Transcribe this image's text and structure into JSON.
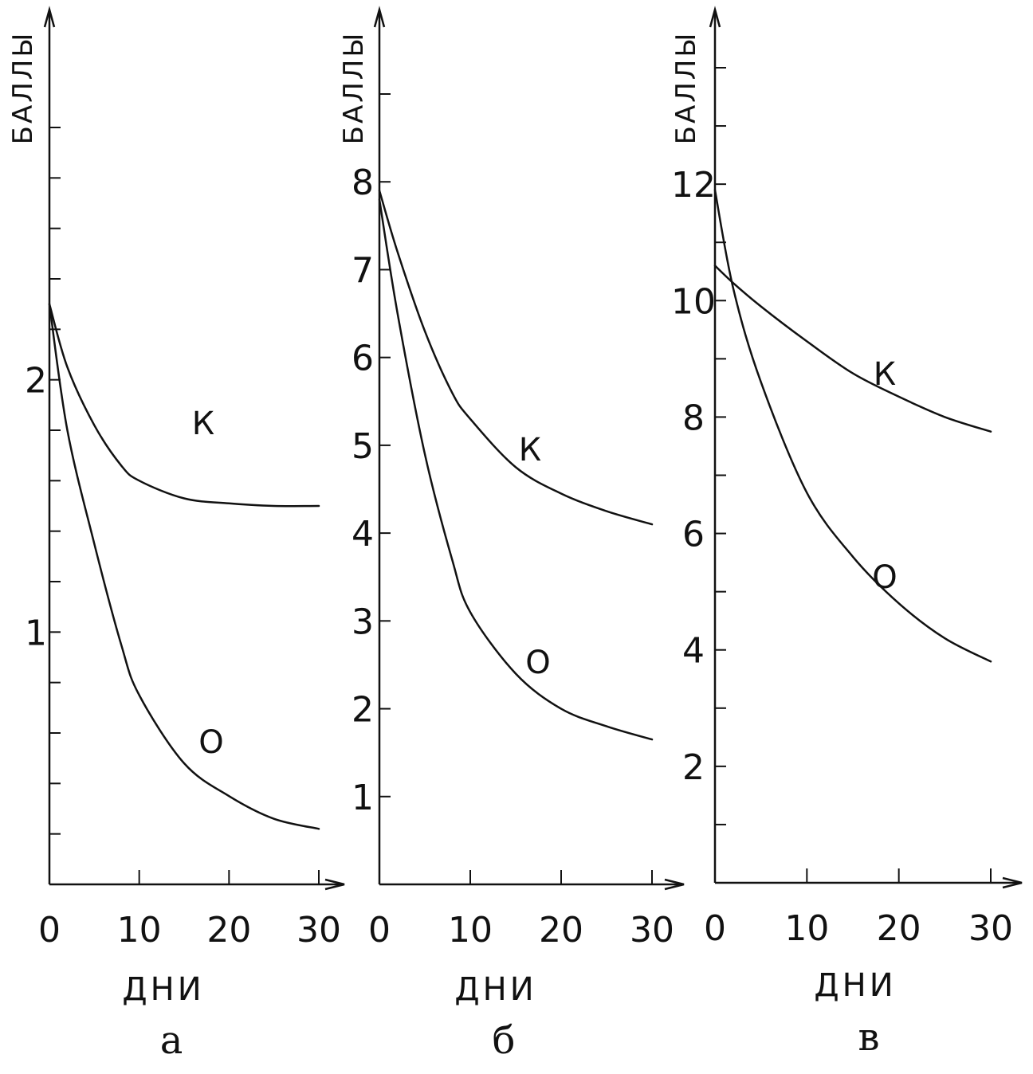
{
  "chart_data": [
    {
      "type": "line",
      "panel_label": "а",
      "xlabel": "ДНИ",
      "ylabel": "БАЛЛЫ",
      "xlim": [
        0,
        30
      ],
      "ylim": [
        0,
        3
      ],
      "x_ticks": [
        0,
        10,
        20,
        30
      ],
      "y_minor_step": 0.2,
      "y_tick_labels": [
        {
          "value": 1,
          "label": "1"
        },
        {
          "value": 2,
          "label": "2"
        }
      ],
      "series": [
        {
          "name": "К",
          "x": [
            0,
            2,
            5,
            8,
            10,
            15,
            20,
            25,
            30
          ],
          "y": [
            2.3,
            2.05,
            1.82,
            1.66,
            1.6,
            1.53,
            1.51,
            1.5,
            1.5
          ]
        },
        {
          "name": "О",
          "x": [
            0,
            2,
            5,
            8,
            10,
            15,
            20,
            25,
            30
          ],
          "y": [
            2.3,
            1.8,
            1.35,
            0.95,
            0.75,
            0.48,
            0.35,
            0.26,
            0.22
          ]
        }
      ]
    },
    {
      "type": "line",
      "panel_label": "б",
      "xlabel": "ДНИ",
      "ylabel": "БАЛЛЫ",
      "xlim": [
        0,
        30
      ],
      "ylim": [
        0,
        9
      ],
      "x_ticks": [
        0,
        10,
        20,
        30
      ],
      "y_minor_step": 1,
      "y_tick_labels": [
        {
          "value": 1,
          "label": "1"
        },
        {
          "value": 2,
          "label": "2"
        },
        {
          "value": 3,
          "label": "3"
        },
        {
          "value": 4,
          "label": "4"
        },
        {
          "value": 5,
          "label": "5"
        },
        {
          "value": 6,
          "label": "6"
        },
        {
          "value": 7,
          "label": "7"
        },
        {
          "value": 8,
          "label": "8"
        }
      ],
      "series": [
        {
          "name": "К",
          "x": [
            0,
            2,
            5,
            8,
            10,
            15,
            20,
            25,
            30
          ],
          "y": [
            7.9,
            7.2,
            6.3,
            5.6,
            5.3,
            4.75,
            4.45,
            4.25,
            4.1
          ]
        },
        {
          "name": "О",
          "x": [
            0,
            2,
            5,
            8,
            10,
            15,
            20,
            25,
            30
          ],
          "y": [
            7.8,
            6.5,
            4.9,
            3.7,
            3.1,
            2.4,
            2.0,
            1.8,
            1.65
          ]
        }
      ]
    },
    {
      "type": "line",
      "panel_label": "в",
      "xlabel": "ДНИ",
      "ylabel": "БАЛЛЫ",
      "xlim": [
        0,
        30
      ],
      "ylim": [
        0,
        14
      ],
      "x_ticks": [
        0,
        10,
        20,
        30
      ],
      "y_minor_step": 1,
      "y_tick_labels": [
        {
          "value": 2,
          "label": "2"
        },
        {
          "value": 4,
          "label": "4"
        },
        {
          "value": 6,
          "label": "6"
        },
        {
          "value": 8,
          "label": "8"
        },
        {
          "value": 10,
          "label": "10"
        },
        {
          "value": 12,
          "label": "12"
        }
      ],
      "series": [
        {
          "name": "К",
          "x": [
            0,
            2,
            5,
            10,
            15,
            20,
            25,
            30
          ],
          "y": [
            10.6,
            10.3,
            9.9,
            9.3,
            8.75,
            8.35,
            8.0,
            7.75
          ]
        },
        {
          "name": "О",
          "x": [
            0,
            2,
            5,
            10,
            15,
            20,
            25,
            30
          ],
          "y": [
            11.9,
            10.2,
            8.6,
            6.7,
            5.6,
            4.8,
            4.2,
            3.8
          ]
        }
      ]
    }
  ]
}
